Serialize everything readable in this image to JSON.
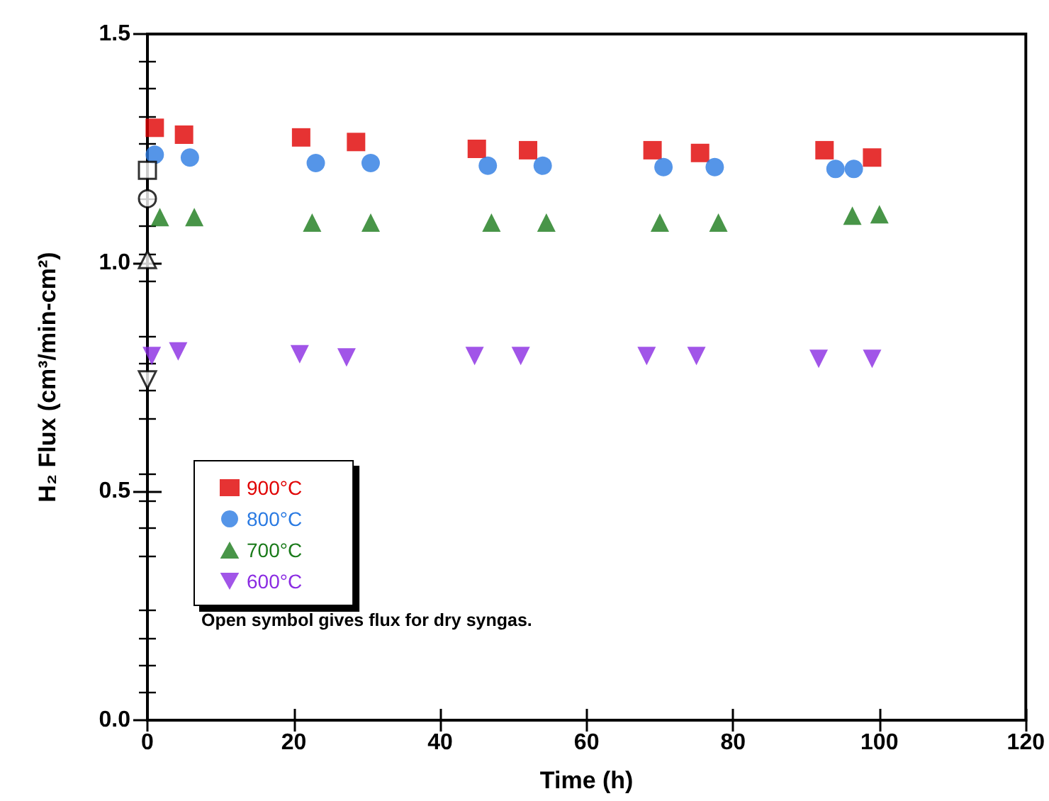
{
  "chart_data": {
    "type": "scatter",
    "xlabel": "Time (h)",
    "ylabel": "H₂ Flux (cm³/min-cm²)",
    "xlim": [
      0,
      120
    ],
    "xticks": [
      0,
      20,
      40,
      60,
      80,
      100,
      120
    ],
    "ylim": [
      0,
      1.5
    ],
    "yticks": [
      {
        "value": 0,
        "label": "0.0"
      },
      0.5,
      {
        "value": 1,
        "label": "1.0"
      },
      1.5
    ],
    "grid": false,
    "legend": "left",
    "annotations": [
      "Open symbol gives flux for dry syngas."
    ],
    "series": [
      {
        "name": "900°C",
        "color": "#e00000",
        "marker": "square",
        "x": [
          1,
          5,
          21,
          28.5,
          45,
          52,
          69,
          75.5,
          92.5,
          99
        ],
        "values": [
          1.295,
          1.28,
          1.274,
          1.264,
          1.249,
          1.246,
          1.246,
          1.24,
          1.246,
          1.23
        ]
      },
      {
        "name": "800°C",
        "color": "#2a7ae2",
        "marker": "circle",
        "x": [
          1,
          5.8,
          23,
          30.5,
          46.5,
          54,
          70.5,
          77.5,
          94,
          96.5
        ],
        "values": [
          1.236,
          1.23,
          1.218,
          1.218,
          1.212,
          1.212,
          1.209,
          1.209,
          1.205,
          1.205
        ]
      },
      {
        "name": "700°C",
        "color": "#1a7a1a",
        "marker": "triangle",
        "x": [
          1.7,
          6.4,
          22.5,
          30.5,
          47,
          54.5,
          70,
          78,
          96.3,
          100
        ],
        "values": [
          1.1,
          1.1,
          1.088,
          1.088,
          1.088,
          1.088,
          1.088,
          1.088,
          1.103,
          1.106
        ]
      },
      {
        "name": "600°C",
        "color": "#8a2be2",
        "marker": "triangle-down",
        "x": [
          0.6,
          4.2,
          20.8,
          27.2,
          44.7,
          51,
          68.2,
          75,
          91.7,
          99
        ],
        "values": [
          0.796,
          0.806,
          0.8,
          0.793,
          0.796,
          0.796,
          0.796,
          0.796,
          0.79,
          0.79
        ]
      },
      {
        "color": "#ffffff",
        "marker": "square",
        "x": [
          0
        ],
        "values": [
          1.202
        ]
      },
      {
        "color": "#ffffff",
        "marker": "circle",
        "x": [
          0
        ],
        "values": [
          1.14
        ]
      },
      {
        "color": "#ffffff",
        "marker": "triangle",
        "x": [
          0
        ],
        "values": [
          1.007
        ]
      },
      {
        "color": "#ffffff",
        "marker": "triangle-down",
        "x": [
          0
        ],
        "values": [
          0.744
        ]
      }
    ]
  }
}
